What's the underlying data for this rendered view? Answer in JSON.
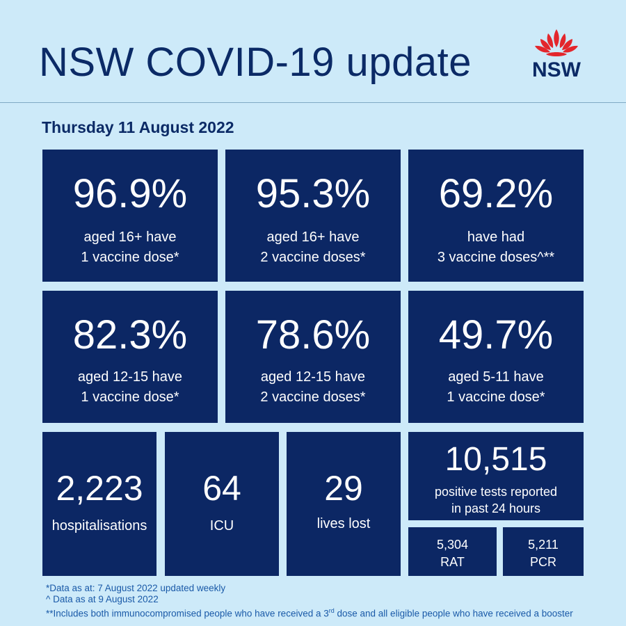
{
  "header": {
    "title": "NSW COVID-19 update",
    "logo_text": "NSW"
  },
  "date": "Thursday 11 August 2022",
  "vaccination": [
    {
      "value": "96.9%",
      "line1": "aged 16+ have",
      "line2": "1 vaccine dose*"
    },
    {
      "value": "95.3%",
      "line1": "aged 16+ have",
      "line2": "2 vaccine doses*"
    },
    {
      "value": "69.2%",
      "line1": "have had",
      "line2": "3 vaccine doses^**"
    },
    {
      "value": "82.3%",
      "line1": "aged 12-15 have",
      "line2": "1 vaccine dose*"
    },
    {
      "value": "78.6%",
      "line1": "aged 12-15 have",
      "line2": "2 vaccine doses*"
    },
    {
      "value": "49.7%",
      "line1": "aged 5-11 have",
      "line2": "1 vaccine dose*"
    }
  ],
  "stats": {
    "hospitalisations": {
      "value": "2,223",
      "label": "hospitalisations"
    },
    "icu": {
      "value": "64",
      "label": "ICU"
    },
    "lives_lost": {
      "value": "29",
      "label": "lives lost"
    },
    "positive_tests": {
      "value": "10,515",
      "line1": "positive tests reported",
      "line2": "in past 24 hours"
    },
    "rat": {
      "value": "5,304",
      "label": "RAT"
    },
    "pcr": {
      "value": "5,211",
      "label": "PCR"
    }
  },
  "footnotes": {
    "line1": "*Data as at: 7 August 2022 updated weekly",
    "line2": "^ Data as at 9 August 2022",
    "line3_pre": "**Includes both immunocompromised  people who have received a 3",
    "line3_sup": "rd",
    "line3_post": " dose and all eligible people  who have received a booster"
  },
  "colors": {
    "background": "#cdeaf9",
    "card": "#0c2764",
    "title": "#0b2a66",
    "footnote": "#1a5aa8",
    "waratah": "#e3262c"
  }
}
